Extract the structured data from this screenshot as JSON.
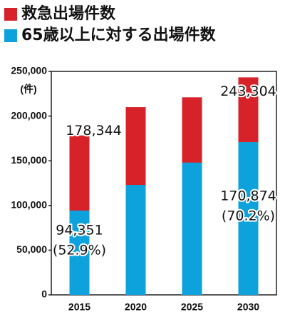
{
  "chart_data": {
    "type": "bar",
    "legend_position": "top-left",
    "y_unit_label": "(件)",
    "categories": [
      "2015",
      "2020",
      "2025",
      "2030"
    ],
    "series": [
      {
        "name": "救急出場件数",
        "color": "#d7222a",
        "values": [
          178344,
          210000,
          221000,
          243304
        ],
        "value_labels": [
          "178,344",
          null,
          null,
          "243,304"
        ]
      },
      {
        "name": "65歳以上に対する出場件数",
        "color": "#0ea2dd",
        "values": [
          94351,
          123000,
          148000,
          170874
        ],
        "value_labels": [
          "94,351",
          null,
          null,
          "170,874"
        ],
        "share_labels": [
          "(52.9%)",
          null,
          null,
          "(70.2%)"
        ]
      }
    ],
    "ylim": [
      0,
      250000
    ],
    "yticks": [
      0,
      {
        "value": 50000,
        "label": "50,000"
      },
      {
        "value": 100000,
        "label": "100,000"
      },
      {
        "value": 150000,
        "label": "150,000"
      },
      {
        "value": 200000,
        "label": "200,000"
      },
      {
        "value": 250000,
        "label": "250,000"
      }
    ],
    "grid": false
  }
}
